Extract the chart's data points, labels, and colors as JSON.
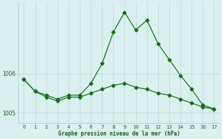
{
  "line1_x": [
    0,
    1,
    2,
    3,
    4,
    5,
    6,
    7,
    8,
    9,
    10,
    11,
    12,
    13,
    14,
    15,
    16,
    17
  ],
  "line1_y": [
    1005.85,
    1005.55,
    1005.45,
    1005.35,
    1005.45,
    1005.45,
    1005.75,
    1006.25,
    1007.05,
    1007.55,
    1007.1,
    1007.35,
    1006.75,
    1006.35,
    1005.95,
    1005.6,
    1005.2,
    1005.1
  ],
  "line2_x": [
    0,
    1,
    2,
    3,
    4,
    5,
    6,
    7,
    8,
    9,
    10,
    11,
    12,
    13,
    14,
    15,
    16,
    17
  ],
  "line2_y": [
    1005.85,
    1005.55,
    1005.4,
    1005.3,
    1005.4,
    1005.4,
    1005.5,
    1005.6,
    1005.7,
    1005.75,
    1005.65,
    1005.6,
    1005.5,
    1005.45,
    1005.35,
    1005.25,
    1005.15,
    1005.1
  ],
  "color": "#1a6b1a",
  "bg_color": "#d9f0ef",
  "grid_color": "#b5d5d5",
  "xlabel": "Graphe pression niveau de la mer (hPa)",
  "yticks": [
    1005,
    1006
  ],
  "ylim": [
    1004.75,
    1007.8
  ],
  "xlim": [
    -0.5,
    17.5
  ],
  "label_color": "#1a5c1a"
}
